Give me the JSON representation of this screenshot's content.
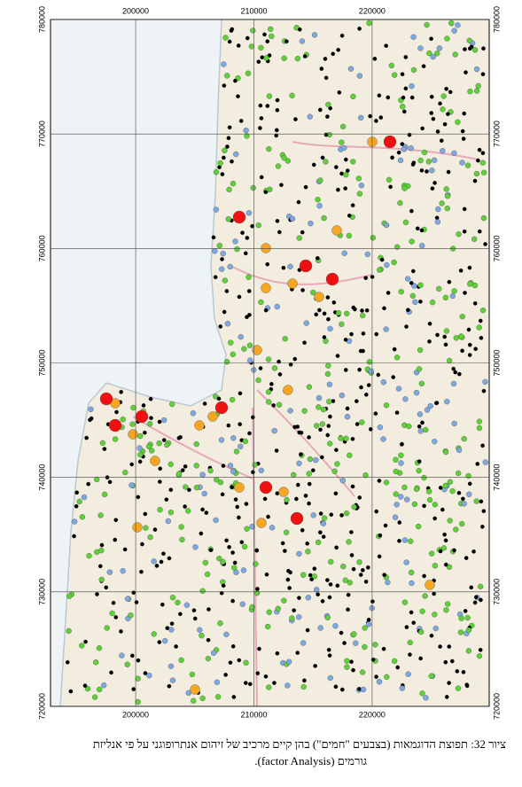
{
  "map": {
    "xlim": [
      192800,
      229900
    ],
    "ylim": [
      720000,
      780000
    ],
    "xticks": [
      200000,
      210000,
      220000
    ],
    "yticks": [
      720000,
      730000,
      740000,
      750000,
      760000,
      770000,
      780000
    ],
    "caption": [
      "ציור 32: תפוצת הדוגמאות (בצבעים \"חמים\") בהן קיים מרכיב של זיהום אנתרופוגני על פי אנליזת",
      "גורמים  (factor Analysis)."
    ]
  }
}
